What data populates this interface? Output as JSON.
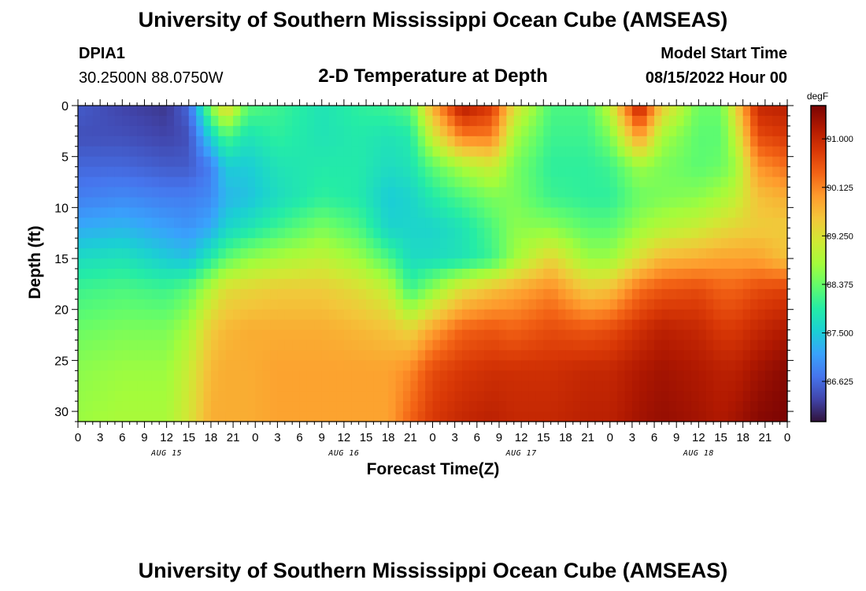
{
  "page": {
    "title": "University of Southern Mississippi Ocean Cube (AMSEAS)",
    "footer_title": "University of Southern Mississippi Ocean Cube (AMSEAS)",
    "station_id": "DPIA1",
    "station_coords": "30.2500N  88.0750W",
    "model_start_label": "Model Start Time",
    "model_start_value": "08/15/2022 Hour 00"
  },
  "chart_data": {
    "type": "heatmap",
    "title": "2-D Temperature at Depth",
    "xlabel": "Forecast Time(Z)",
    "ylabel": "Depth (ft)",
    "x_hours": [
      0,
      96
    ],
    "ylim": [
      0,
      31
    ],
    "y_ticks": [
      0,
      5,
      10,
      15,
      20,
      25,
      30
    ],
    "x_tick_labels": [
      "0",
      "3",
      "6",
      "9",
      "12",
      "15",
      "18",
      "21",
      "0",
      "3",
      "6",
      "9",
      "12",
      "15",
      "18",
      "21",
      "0",
      "3",
      "6",
      "9",
      "12",
      "15",
      "18",
      "21",
      "0",
      "3",
      "6",
      "9",
      "12",
      "15",
      "18",
      "21",
      "0"
    ],
    "day_labels": [
      "AUG 15",
      "AUG 16",
      "AUG 17",
      "AUG 18"
    ],
    "colorbar": {
      "unit": "degF",
      "range": [
        85.9,
        91.6
      ],
      "ticks": [
        "91.000",
        "90.125",
        "89.250",
        "88.375",
        "87.500",
        "86.625"
      ],
      "colors": [
        "#30123b",
        "#4145ab",
        "#4675ed",
        "#39a2fc",
        "#1bcfd4",
        "#24eca6",
        "#61fc6c",
        "#a4fc3b",
        "#d1e834",
        "#f3c63a",
        "#fe9b2d",
        "#f36315",
        "#d93806",
        "#b11901",
        "#7a0403"
      ]
    },
    "profiles": [
      {
        "hour": 0,
        "temps": [
          86.5,
          86.4,
          86.6,
          86.8,
          87.2,
          87.7,
          88.1,
          88.4,
          88.6,
          88.7
        ]
      },
      {
        "hour": 6,
        "temps": [
          86.3,
          86.4,
          86.6,
          86.9,
          87.3,
          87.8,
          88.2,
          88.5,
          88.7,
          88.8
        ]
      },
      {
        "hour": 12,
        "temps": [
          86.2,
          86.3,
          86.5,
          86.8,
          87.1,
          87.5,
          88.1,
          88.5,
          88.7,
          88.8
        ]
      },
      {
        "hour": 15,
        "temps": [
          86.6,
          86.4,
          86.5,
          86.8,
          87.0,
          87.4,
          88.3,
          88.8,
          89.1,
          89.2
        ]
      },
      {
        "hour": 18,
        "temps": [
          88.6,
          87.6,
          86.8,
          86.9,
          87.2,
          87.9,
          88.9,
          89.5,
          89.7,
          89.8
        ]
      },
      {
        "hour": 20,
        "temps": [
          89.5,
          88.2,
          87.5,
          87.3,
          87.6,
          88.3,
          89.3,
          89.7,
          89.8,
          89.8
        ]
      },
      {
        "hour": 23,
        "temps": [
          88.3,
          87.8,
          87.5,
          87.4,
          87.8,
          88.6,
          89.4,
          89.8,
          89.8,
          89.8
        ]
      },
      {
        "hour": 27,
        "temps": [
          88.1,
          88.0,
          87.8,
          87.7,
          88.1,
          88.8,
          89.5,
          89.8,
          89.9,
          89.9
        ]
      },
      {
        "hour": 33,
        "temps": [
          87.8,
          87.8,
          87.9,
          88.0,
          88.5,
          89.0,
          89.5,
          89.8,
          89.9,
          89.9
        ]
      },
      {
        "hour": 38,
        "temps": [
          88.0,
          87.9,
          87.9,
          87.9,
          88.2,
          88.7,
          89.3,
          89.7,
          89.9,
          89.9
        ]
      },
      {
        "hour": 42,
        "temps": [
          88.1,
          87.8,
          87.7,
          87.5,
          87.6,
          88.2,
          89.0,
          89.6,
          89.9,
          89.9
        ]
      },
      {
        "hour": 45,
        "temps": [
          88.3,
          87.9,
          87.8,
          87.6,
          87.6,
          87.7,
          88.1,
          89.4,
          90.1,
          90.4
        ]
      },
      {
        "hour": 48,
        "temps": [
          89.8,
          89.1,
          88.3,
          87.9,
          87.6,
          87.7,
          88.6,
          89.9,
          90.6,
          90.8
        ]
      },
      {
        "hour": 52,
        "temps": [
          91.2,
          90.2,
          88.8,
          88.2,
          87.8,
          87.8,
          89.3,
          90.4,
          90.8,
          91.0
        ]
      },
      {
        "hour": 56,
        "temps": [
          90.8,
          90.2,
          89.1,
          88.5,
          88.2,
          88.1,
          89.6,
          90.5,
          90.9,
          91.1
        ]
      },
      {
        "hour": 59,
        "temps": [
          89.3,
          88.8,
          88.5,
          88.5,
          88.6,
          88.7,
          89.8,
          90.4,
          90.9,
          91.0
        ]
      },
      {
        "hour": 64,
        "temps": [
          88.2,
          88.1,
          88.0,
          88.1,
          88.6,
          89.4,
          90.1,
          90.6,
          90.9,
          91.0
        ]
      },
      {
        "hour": 69,
        "temps": [
          88.2,
          88.1,
          88.0,
          88.0,
          88.3,
          88.7,
          89.5,
          90.5,
          91.0,
          91.1
        ]
      },
      {
        "hour": 72,
        "temps": [
          89.0,
          88.5,
          88.1,
          88.0,
          88.3,
          88.7,
          89.6,
          90.6,
          91.0,
          91.1
        ]
      },
      {
        "hour": 76,
        "temps": [
          91.2,
          90.0,
          88.7,
          88.4,
          88.7,
          89.3,
          90.3,
          90.9,
          91.2,
          91.3
        ]
      },
      {
        "hour": 79,
        "temps": [
          89.5,
          88.8,
          88.5,
          88.5,
          88.9,
          89.7,
          90.5,
          91.1,
          91.3,
          91.4
        ]
      },
      {
        "hour": 84,
        "temps": [
          88.4,
          88.3,
          88.3,
          88.6,
          89.1,
          89.8,
          90.6,
          91.0,
          91.2,
          91.3
        ]
      },
      {
        "hour": 87,
        "temps": [
          88.4,
          88.3,
          88.4,
          88.8,
          89.3,
          89.9,
          90.4,
          90.8,
          91.1,
          91.2
        ]
      },
      {
        "hour": 89,
        "temps": [
          89.4,
          89.0,
          88.7,
          89.0,
          89.4,
          89.9,
          90.4,
          90.8,
          91.1,
          91.3
        ]
      },
      {
        "hour": 92,
        "temps": [
          91.0,
          90.6,
          90.0,
          89.6,
          89.5,
          89.9,
          90.6,
          91.0,
          91.3,
          91.5
        ]
      },
      {
        "hour": 96,
        "temps": [
          91.1,
          90.8,
          90.3,
          89.8,
          89.5,
          89.6,
          90.7,
          91.2,
          91.5,
          91.6
        ]
      }
    ],
    "depths": [
      0,
      3,
      6,
      9,
      12,
      15,
      18,
      22,
      26,
      31
    ]
  }
}
